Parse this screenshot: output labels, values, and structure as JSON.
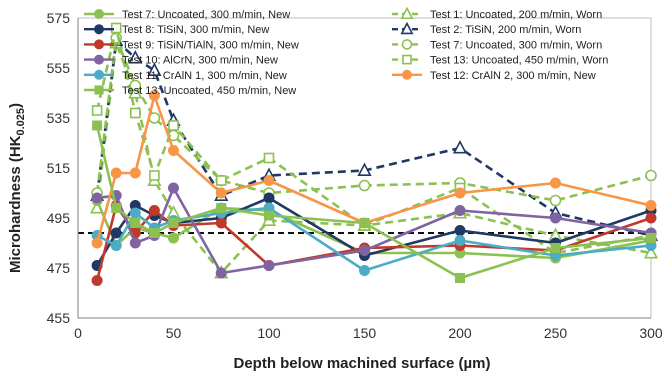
{
  "chart_data": {
    "type": "line",
    "xlabel": "Depth below machined surface (µm)",
    "ylabel_main": "Microhardness (HK",
    "ylabel_sub": "0.025",
    "ylabel_close": ")",
    "xlim": [
      0,
      300
    ],
    "ylim": [
      455,
      575
    ],
    "xticks": [
      0,
      50,
      100,
      150,
      200,
      250,
      300
    ],
    "yticks": [
      455,
      475,
      495,
      515,
      535,
      555,
      575
    ],
    "grid": true,
    "legend_position": "top-inside",
    "reference_line": {
      "y": 489,
      "style": "dashed",
      "color": "#111111"
    },
    "series": [
      {
        "name": "Test 7: Uncoated, 300 m/min, New",
        "color": "#8cc152",
        "dash": false,
        "marker": "circle",
        "filled": true,
        "x": [
          10,
          20,
          30,
          40,
          50,
          75,
          100,
          150,
          200,
          250,
          300
        ],
        "y": [
          502,
          484,
          491,
          489,
          487,
          499,
          498,
          481,
          481,
          479,
          486
        ]
      },
      {
        "name": "Test 8: TiSiN, 300 m/min, New",
        "color": "#1f3864",
        "dash": false,
        "marker": "circle",
        "filled": true,
        "x": [
          10,
          20,
          30,
          40,
          50,
          75,
          100,
          150,
          200,
          250,
          300
        ],
        "y": [
          476,
          489,
          500,
          496,
          493,
          495,
          503,
          480,
          490,
          485,
          498
        ]
      },
      {
        "name": "Test 9: TiSiN/TiAlN, 300 m/min, New",
        "color": "#c0392b",
        "dash": false,
        "marker": "circle",
        "filled": true,
        "x": [
          10,
          20,
          30,
          40,
          50,
          75,
          100,
          150,
          200,
          250,
          300
        ],
        "y": [
          470,
          500,
          489,
          498,
          492,
          493,
          476,
          483,
          484,
          482,
          495
        ]
      },
      {
        "name": "Test 10: AlCrN, 300 m/min, New",
        "color": "#8064a2",
        "dash": false,
        "marker": "circle",
        "filled": true,
        "x": [
          10,
          20,
          30,
          40,
          50,
          75,
          100,
          150,
          200,
          250,
          300
        ],
        "y": [
          503,
          504,
          485,
          488,
          507,
          473,
          476,
          482,
          498,
          495,
          489
        ]
      },
      {
        "name": "Test 11: CrAlN 1, 300 m/min, New",
        "color": "#4bacc6",
        "dash": false,
        "marker": "circle",
        "filled": true,
        "x": [
          10,
          20,
          30,
          40,
          50,
          75,
          100,
          150,
          200,
          250,
          300
        ],
        "y": [
          488,
          484,
          497,
          491,
          494,
          497,
          499,
          474,
          486,
          480,
          484
        ]
      },
      {
        "name": "Test 12: CrAlN 2, 300 m/min, New",
        "color": "#f79646",
        "dash": false,
        "marker": "circle",
        "filled": true,
        "x": [
          10,
          20,
          30,
          40,
          50,
          75,
          100,
          150,
          200,
          250,
          300
        ],
        "y": [
          485,
          513,
          513,
          544,
          522,
          505,
          510,
          493,
          505,
          509,
          500
        ]
      },
      {
        "name": "Test 13: Uncoated, 450 m/min, New",
        "color": "#8cc152",
        "dash": false,
        "marker": "square",
        "filled": true,
        "x": [
          10,
          20,
          30,
          40,
          50,
          75,
          100,
          150,
          200,
          250,
          300
        ],
        "y": [
          532,
          499,
          493,
          489,
          493,
          499,
          496,
          493,
          471,
          483,
          487
        ]
      },
      {
        "name": "Test 1: Uncoated, 200 m/min, Worn",
        "color": "#8cc152",
        "dash": true,
        "marker": "triangle",
        "filled": false,
        "x": [
          10,
          20,
          30,
          40,
          50,
          75,
          100,
          150,
          200,
          250,
          300
        ],
        "y": [
          499,
          565,
          545,
          510,
          497,
          473,
          494,
          492,
          497,
          488,
          481
        ]
      },
      {
        "name": "Test 2: TiSiN, 200 m/min, Worn",
        "color": "#1f3864",
        "dash": true,
        "marker": "triangle",
        "filled": false,
        "x": [
          10,
          20,
          30,
          40,
          50,
          75,
          100,
          150,
          200,
          250,
          300
        ],
        "y": [
          504,
          566,
          559,
          554,
          534,
          504,
          512,
          514,
          523,
          497,
          488
        ]
      },
      {
        "name": "Test 7: Uncoated, 300 m/min, Worn",
        "color": "#8cc152",
        "dash": true,
        "marker": "circle",
        "filled": false,
        "x": [
          10,
          20,
          30,
          40,
          50,
          75,
          100,
          150,
          200,
          250,
          300
        ],
        "y": [
          505,
          567,
          548,
          535,
          528,
          510,
          505,
          508,
          509,
          502,
          512
        ]
      },
      {
        "name": "Test 13: Uncoated, 450 m/min, Worn",
        "color": "#8cc152",
        "dash": true,
        "marker": "square",
        "filled": false,
        "x": [
          10,
          20,
          30,
          40,
          50,
          75,
          100,
          150,
          200,
          250,
          300
        ],
        "y": [
          538,
          571,
          537,
          512,
          532,
          510,
          519,
          492,
          507,
          481,
          488
        ]
      }
    ],
    "legend_order": [
      0,
      7,
      1,
      8,
      2,
      9,
      3,
      10,
      4,
      5,
      6
    ]
  }
}
